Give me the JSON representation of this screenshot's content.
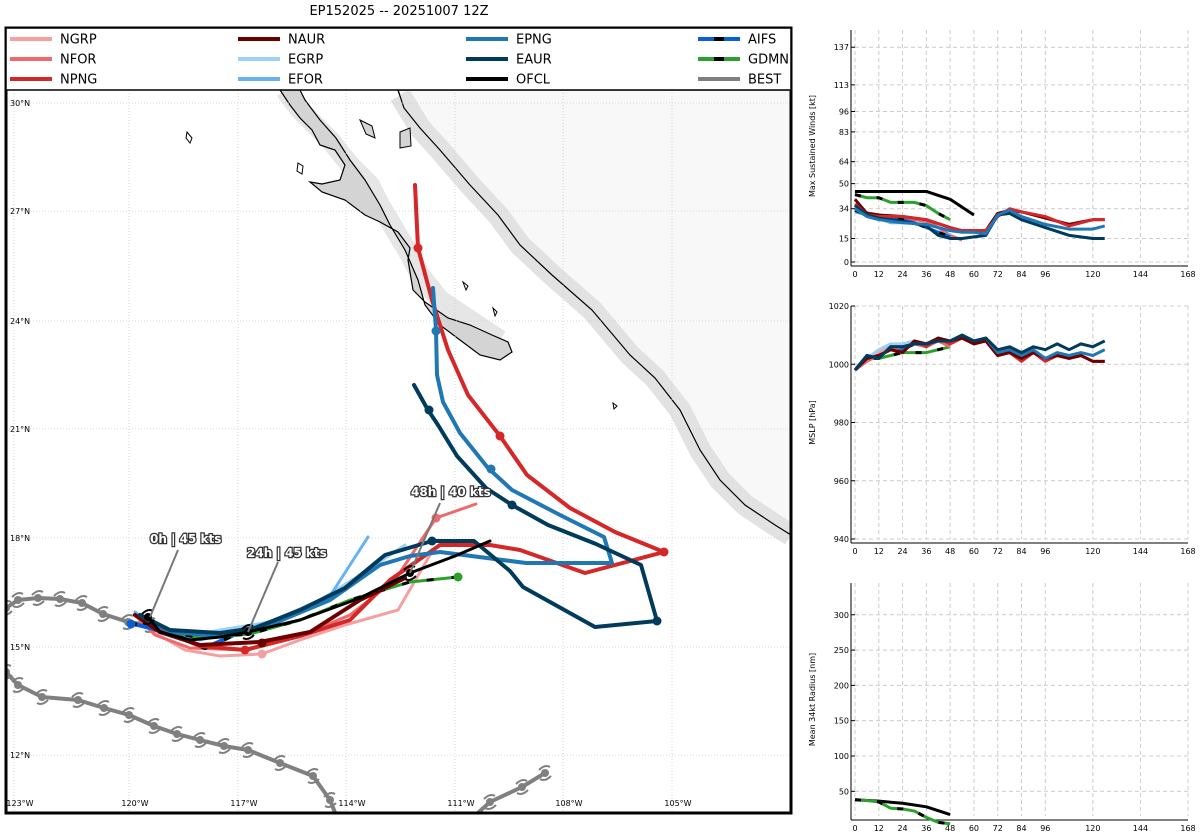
{
  "page_title": "EP152025 -- 20251007 12Z",
  "legend": [
    {
      "name": "NGRP",
      "color": "#f4a0a0",
      "style": "solid"
    },
    {
      "name": "NFOR",
      "color": "#ee6a6a",
      "style": "solid"
    },
    {
      "name": "NPNG",
      "color": "#d62728",
      "style": "solid"
    },
    {
      "name": "NAUR",
      "color": "#6b0000",
      "style": "solid"
    },
    {
      "name": "EGRP",
      "color": "#9fd0f5",
      "style": "solid"
    },
    {
      "name": "EFOR",
      "color": "#66b3f2",
      "style": "solid"
    },
    {
      "name": "EPNG",
      "color": "#1f77b4",
      "style": "solid"
    },
    {
      "name": "EAUR",
      "color": "#003b5c",
      "style": "solid"
    },
    {
      "name": "OFCL",
      "color": "#000000",
      "style": "solid"
    },
    {
      "name": "AIFS",
      "color": "#0b5ed7",
      "style": "dashed"
    },
    {
      "name": "GDMN",
      "color": "#2ca02c",
      "style": "dashed"
    },
    {
      "name": "BEST",
      "color": "#808080",
      "style": "solid"
    }
  ],
  "map": {
    "lon_labels": [
      "123°W",
      "120°W",
      "117°W",
      "114°W",
      "111°W",
      "108°W",
      "105°W"
    ],
    "lat_labels": [
      "30°N",
      "27°N",
      "24°N",
      "21°N",
      "18°N",
      "15°N",
      "12°N"
    ],
    "annotations": [
      "0h | 45 kts",
      "24h | 45 kts",
      "48h | 40 kts"
    ]
  },
  "colors": {
    "land": "#d4d4d4",
    "ocean": "#ffffff",
    "best": "#808080"
  },
  "chart_data": [
    {
      "type": "line",
      "ylabel": "Max Sustained Winds [kt]",
      "xlim": [
        0,
        168
      ],
      "ylim": [
        0,
        148
      ],
      "xticks": [
        0,
        12,
        24,
        36,
        48,
        60,
        72,
        84,
        96,
        120,
        144,
        168
      ],
      "yticks": [
        0,
        15,
        34,
        50,
        64,
        83,
        96,
        113,
        137
      ],
      "series": [
        {
          "name": "OFCL",
          "color": "#000000",
          "x": [
            0,
            12,
            24,
            36,
            48,
            60
          ],
          "y": [
            45,
            45,
            45,
            45,
            40,
            30
          ]
        },
        {
          "name": "GDMN",
          "color": "#2ca02c",
          "dashed": true,
          "x": [
            0,
            6,
            12,
            18,
            24,
            30,
            36,
            42,
            48
          ],
          "y": [
            43,
            41,
            41,
            38,
            38,
            38,
            36,
            31,
            27
          ]
        },
        {
          "name": "NFOR",
          "color": "#ee6a6a",
          "x": [
            0,
            12,
            24,
            36,
            42,
            48,
            54
          ],
          "y": [
            33,
            30,
            28,
            26,
            22,
            17,
            14
          ]
        },
        {
          "name": "EFOR",
          "color": "#66b3f2",
          "x": [
            0,
            12,
            18,
            24,
            30,
            36,
            42,
            48
          ],
          "y": [
            32,
            28,
            25,
            25,
            25,
            22,
            19,
            17
          ]
        },
        {
          "name": "AIFS",
          "color": "#0b5ed7",
          "dashed": true,
          "x": [
            0,
            6,
            12,
            18,
            24,
            30,
            36,
            42,
            48
          ],
          "y": [
            33,
            30,
            29,
            28,
            27,
            25,
            22,
            19,
            16
          ]
        },
        {
          "name": "NAUR",
          "color": "#6b0000",
          "x": [
            0,
            6,
            12,
            24,
            36,
            48,
            54,
            60,
            66,
            72,
            78,
            84,
            96,
            108,
            120,
            126
          ],
          "y": [
            40,
            31,
            30,
            29,
            27,
            22,
            20,
            20,
            20,
            31,
            33,
            32,
            28,
            24,
            27,
            27
          ]
        },
        {
          "name": "NPNG",
          "color": "#d62728",
          "x": [
            0,
            6,
            12,
            24,
            36,
            48,
            54,
            60,
            66,
            72,
            78,
            84,
            96,
            108,
            120,
            126
          ],
          "y": [
            37,
            30,
            29,
            29,
            27,
            22,
            20,
            20,
            20,
            29,
            34,
            32,
            29,
            23,
            27,
            27
          ]
        },
        {
          "name": "EAUR",
          "color": "#003b5c",
          "x": [
            0,
            6,
            12,
            24,
            36,
            42,
            48,
            54,
            60,
            66,
            72,
            78,
            84,
            96,
            108,
            120,
            126
          ],
          "y": [
            36,
            30,
            28,
            26,
            23,
            17,
            15,
            15,
            16,
            17,
            30,
            31,
            27,
            22,
            17,
            15,
            15
          ]
        },
        {
          "name": "EPNG",
          "color": "#1f77b4",
          "x": [
            0,
            6,
            12,
            24,
            36,
            48,
            54,
            60,
            66,
            72,
            78,
            84,
            96,
            108,
            120,
            126
          ],
          "y": [
            34,
            29,
            27,
            25,
            24,
            20,
            19,
            19,
            18,
            30,
            33,
            29,
            24,
            21,
            21,
            23
          ]
        }
      ]
    },
    {
      "type": "line",
      "ylabel": "MSLP [hPa]",
      "xlim": [
        0,
        168
      ],
      "ylim": [
        940,
        1020
      ],
      "xticks": [
        0,
        12,
        24,
        36,
        48,
        60,
        72,
        84,
        96,
        120,
        144,
        168
      ],
      "yticks": [
        940,
        960,
        980,
        1000,
        1020
      ],
      "series": [
        {
          "name": "GDMN",
          "color": "#2ca02c",
          "dashed": true,
          "x": [
            0,
            6,
            12,
            24,
            36,
            48
          ],
          "y": [
            998,
            1002,
            1002,
            1004,
            1004,
            1006
          ]
        },
        {
          "name": "NGRP",
          "color": "#f4a0a0",
          "x": [
            0,
            6,
            12,
            18,
            24,
            30
          ],
          "y": [
            998,
            1001,
            1004,
            1006,
            1006,
            1008
          ]
        },
        {
          "name": "EGRP",
          "color": "#9fd0f5",
          "x": [
            0,
            6,
            12,
            18,
            24,
            30
          ],
          "y": [
            998,
            1002,
            1005,
            1007,
            1007,
            1008
          ]
        },
        {
          "name": "AIFS",
          "color": "#0b5ed7",
          "dashed": true,
          "x": [
            0,
            6,
            12,
            18,
            24,
            30
          ],
          "y": [
            998,
            1003,
            1002,
            1006,
            1005,
            1007
          ]
        },
        {
          "name": "NFOR",
          "color": "#ee6a6a",
          "x": [
            0,
            6,
            12,
            18,
            24,
            30,
            36,
            42,
            48
          ],
          "y": [
            998,
            1001,
            1003,
            1005,
            1006,
            1007,
            1006,
            1008,
            1006
          ]
        },
        {
          "name": "NPNG",
          "color": "#d62728",
          "x": [
            0,
            6,
            12,
            18,
            24,
            30,
            36,
            42,
            48,
            54,
            60,
            66,
            72,
            78,
            84,
            90,
            96,
            102,
            108,
            114,
            120,
            126
          ],
          "y": [
            998,
            1002,
            1003,
            1005,
            1004,
            1008,
            1006,
            1009,
            1007,
            1009,
            1007,
            1008,
            1003,
            1004,
            1001,
            1004,
            1001,
            1003,
            1002,
            1003,
            1001,
            1001
          ]
        },
        {
          "name": "NAUR",
          "color": "#6b0000",
          "x": [
            0,
            6,
            12,
            18,
            24,
            30,
            36,
            42,
            48,
            54,
            60,
            66,
            72,
            78,
            84,
            90,
            96,
            102,
            108,
            114,
            120,
            126
          ],
          "y": [
            998,
            1002,
            1003,
            1005,
            1004,
            1008,
            1007,
            1009,
            1008,
            1009,
            1007,
            1008,
            1003,
            1004,
            1002,
            1004,
            1002,
            1003,
            1002,
            1003,
            1001,
            1001
          ]
        },
        {
          "name": "EPNG",
          "color": "#1f77b4",
          "x": [
            0,
            6,
            12,
            18,
            24,
            30,
            36,
            42,
            48,
            54,
            60,
            66,
            72,
            78,
            84,
            90,
            96,
            102,
            108,
            114,
            120,
            126
          ],
          "y": [
            998,
            1003,
            1002,
            1006,
            1006,
            1007,
            1007,
            1008,
            1008,
            1010,
            1008,
            1009,
            1004,
            1005,
            1003,
            1005,
            1002,
            1004,
            1003,
            1004,
            1003,
            1005
          ]
        },
        {
          "name": "EAUR",
          "color": "#003b5c",
          "x": [
            0,
            6,
            12,
            18,
            24,
            30,
            36,
            42,
            48,
            54,
            60,
            66,
            72,
            78,
            84,
            90,
            96,
            102,
            108,
            114,
            120,
            126
          ],
          "y": [
            998,
            1003,
            1002,
            1006,
            1006,
            1007,
            1007,
            1008,
            1008,
            1010,
            1008,
            1009,
            1005,
            1006,
            1004,
            1006,
            1005,
            1007,
            1005,
            1007,
            1006,
            1008
          ]
        }
      ]
    },
    {
      "type": "line",
      "ylabel": "Mean 34kt Radius [nm]",
      "xlim": [
        0,
        168
      ],
      "ylim": [
        15,
        345
      ],
      "xticks": [
        0,
        12,
        24,
        36,
        48,
        60,
        72,
        84,
        96,
        120,
        144,
        168
      ],
      "yticks": [
        50,
        100,
        150,
        200,
        250,
        300
      ],
      "series": [
        {
          "name": "OFCL",
          "color": "#000000",
          "x": [
            0,
            12,
            24,
            36,
            48
          ],
          "y": [
            38,
            36,
            33,
            28,
            17
          ]
        },
        {
          "name": "GDMN",
          "color": "#2ca02c",
          "dashed": true,
          "x": [
            0,
            6,
            12,
            18,
            24,
            30,
            36,
            42,
            48
          ],
          "y": [
            38,
            37,
            35,
            26,
            25,
            22,
            13,
            6,
            4
          ]
        }
      ]
    }
  ]
}
